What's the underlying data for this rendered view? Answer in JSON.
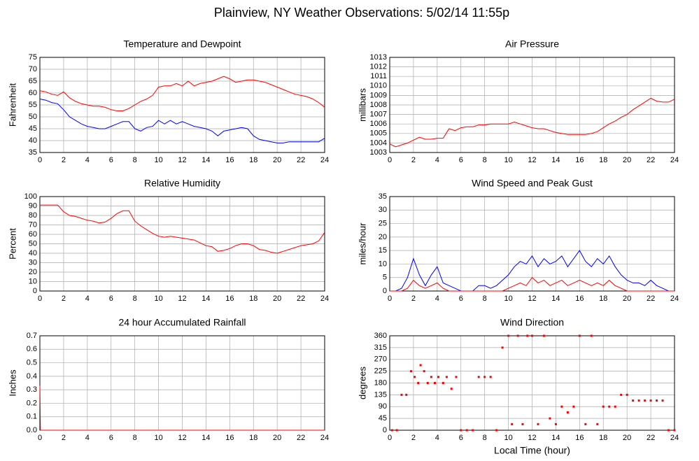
{
  "title": "Plainview, NY Weather Observations: 5/02/14 11:55p",
  "chart_data": [
    {
      "type": "line",
      "title": "Temperature and Dewpoint",
      "ylabel": "Fahrenheit",
      "xlim": [
        0,
        24
      ],
      "xticks": [
        0,
        2,
        4,
        6,
        8,
        10,
        12,
        14,
        16,
        18,
        20,
        22,
        24
      ],
      "ylim": [
        35,
        75
      ],
      "yticks": [
        35,
        40,
        45,
        50,
        55,
        60,
        65,
        70,
        75
      ],
      "grid": true,
      "x": [
        0,
        0.5,
        1,
        1.5,
        2,
        2.5,
        3,
        3.5,
        4,
        4.5,
        5,
        5.5,
        6,
        6.5,
        7,
        7.5,
        8,
        8.5,
        9,
        9.5,
        10,
        10.5,
        11,
        11.5,
        12,
        12.5,
        13,
        13.5,
        14,
        14.5,
        15,
        15.5,
        16,
        16.5,
        17,
        17.5,
        18,
        18.5,
        19,
        19.5,
        20,
        20.5,
        21,
        21.5,
        22,
        22.5,
        23,
        23.5,
        24
      ],
      "series": [
        {
          "color": "#ff0000",
          "values": [
            61,
            60.5,
            59.5,
            59,
            60.5,
            58,
            56.5,
            55.5,
            55,
            54.5,
            54.5,
            54,
            53,
            52.5,
            52.5,
            53.5,
            55,
            56.5,
            57.5,
            59,
            62.5,
            63,
            63,
            64,
            63,
            65,
            63,
            64,
            64.5,
            65,
            66,
            67,
            66,
            64.5,
            65,
            65.5,
            65.5,
            65,
            64.5,
            63.5,
            62.5,
            61.5,
            60.5,
            59.5,
            59,
            58.5,
            57.5,
            56,
            54
          ]
        },
        {
          "color": "#0000ff",
          "values": [
            57.5,
            57,
            56,
            55.5,
            53,
            50,
            48.5,
            47,
            46,
            45.5,
            45,
            45,
            46,
            47,
            48,
            48,
            45,
            44,
            45.5,
            46,
            48.5,
            47,
            48.5,
            47,
            48,
            47,
            46,
            45.5,
            45,
            44,
            42,
            44,
            44.5,
            45,
            45.5,
            45,
            42,
            40.5,
            40,
            39.5,
            39,
            39,
            39.5,
            39.5,
            39.5,
            39.5,
            39.5,
            39.5,
            41
          ]
        }
      ]
    },
    {
      "type": "line",
      "title": "Air Pressure",
      "ylabel": "millibars",
      "xlim": [
        0,
        24
      ],
      "xticks": [
        0,
        2,
        4,
        6,
        8,
        10,
        12,
        14,
        16,
        18,
        20,
        22,
        24
      ],
      "ylim": [
        1003,
        1013
      ],
      "yticks": [
        1003,
        1004,
        1005,
        1006,
        1007,
        1008,
        1009,
        1010,
        1011,
        1012,
        1013
      ],
      "grid": true,
      "x": [
        0,
        0.5,
        1,
        1.5,
        2,
        2.5,
        3,
        3.5,
        4,
        4.5,
        5,
        5.5,
        6,
        6.5,
        7,
        7.5,
        8,
        8.5,
        9,
        9.5,
        10,
        10.5,
        11,
        11.5,
        12,
        12.5,
        13,
        13.5,
        14,
        14.5,
        15,
        15.5,
        16,
        16.5,
        17,
        17.5,
        18,
        18.5,
        19,
        19.5,
        20,
        20.5,
        21,
        21.5,
        22,
        22.5,
        23,
        23.5,
        24
      ],
      "series": [
        {
          "color": "#ff0000",
          "values": [
            1003.9,
            1003.6,
            1003.8,
            1004,
            1004.3,
            1004.6,
            1004.4,
            1004.4,
            1004.5,
            1004.5,
            1005.5,
            1005.3,
            1005.6,
            1005.7,
            1005.7,
            1005.9,
            1005.9,
            1006,
            1006,
            1006,
            1006,
            1006.2,
            1006,
            1005.8,
            1005.6,
            1005.5,
            1005.5,
            1005.3,
            1005.1,
            1005,
            1004.9,
            1004.9,
            1004.9,
            1004.9,
            1005,
            1005.2,
            1005.6,
            1006,
            1006.3,
            1006.7,
            1007,
            1007.5,
            1007.9,
            1008.3,
            1008.7,
            1008.4,
            1008.3,
            1008.3,
            1008.6
          ]
        }
      ]
    },
    {
      "type": "line",
      "title": "Relative Humidity",
      "ylabel": "Percent",
      "xlim": [
        0,
        24
      ],
      "xticks": [
        0,
        2,
        4,
        6,
        8,
        10,
        12,
        14,
        16,
        18,
        20,
        22,
        24
      ],
      "ylim": [
        0,
        100
      ],
      "yticks": [
        0,
        10,
        20,
        30,
        40,
        50,
        60,
        70,
        80,
        90,
        100
      ],
      "grid": true,
      "x": [
        0,
        0.5,
        1,
        1.5,
        2,
        2.5,
        3,
        3.5,
        4,
        4.5,
        5,
        5.5,
        6,
        6.5,
        7,
        7.5,
        8,
        8.5,
        9,
        9.5,
        10,
        10.5,
        11,
        11.5,
        12,
        12.5,
        13,
        13.5,
        14,
        14.5,
        15,
        15.5,
        16,
        16.5,
        17,
        17.5,
        18,
        18.5,
        19,
        19.5,
        20,
        20.5,
        21,
        21.5,
        22,
        22.5,
        23,
        23.5,
        24
      ],
      "series": [
        {
          "color": "#ff0000",
          "values": [
            91,
            91,
            91,
            91,
            84,
            80,
            79,
            77,
            75,
            74,
            72,
            73,
            77,
            82,
            85,
            85,
            74,
            69,
            65,
            61,
            58,
            57,
            58,
            57,
            56,
            55,
            54,
            51,
            48,
            47,
            42,
            43,
            45,
            48,
            50,
            50,
            48,
            44,
            43,
            41,
            40,
            42,
            44,
            46,
            48,
            49,
            50,
            53,
            62
          ]
        }
      ]
    },
    {
      "type": "line",
      "title": "Wind Speed and Peak Gust",
      "ylabel": "miles/hour",
      "xlim": [
        0,
        24
      ],
      "xticks": [
        0,
        2,
        4,
        6,
        8,
        10,
        12,
        14,
        16,
        18,
        20,
        22,
        24
      ],
      "ylim": [
        0,
        35
      ],
      "yticks": [
        0,
        5,
        10,
        15,
        20,
        25,
        30,
        35
      ],
      "grid": true,
      "x": [
        0,
        0.5,
        1,
        1.5,
        2,
        2.5,
        3,
        3.5,
        4,
        4.5,
        5,
        5.5,
        6,
        6.5,
        7,
        7.5,
        8,
        8.5,
        9,
        9.5,
        10,
        10.5,
        11,
        11.5,
        12,
        12.5,
        13,
        13.5,
        14,
        14.5,
        15,
        15.5,
        16,
        16.5,
        17,
        17.5,
        18,
        18.5,
        19,
        19.5,
        20,
        20.5,
        21,
        21.5,
        22,
        22.5,
        23,
        23.5,
        24
      ],
      "series": [
        {
          "color": "#0000ff",
          "values": [
            0,
            0,
            1,
            5,
            12,
            6,
            2,
            6,
            9,
            3,
            2,
            1,
            0,
            0,
            0,
            2,
            2,
            1,
            2,
            4,
            6,
            9,
            11,
            10,
            13,
            9,
            12,
            10,
            11,
            13,
            9,
            12,
            15,
            11,
            9,
            12,
            10,
            13,
            9,
            6,
            4,
            3,
            3,
            2,
            4,
            2,
            1,
            0,
            0
          ]
        },
        {
          "color": "#ff0000",
          "values": [
            0,
            0,
            0,
            1,
            4,
            2,
            1,
            2,
            3,
            1,
            0,
            0,
            0,
            0,
            0,
            0,
            0,
            0,
            0,
            0,
            1,
            2,
            3,
            2,
            5,
            3,
            4,
            2,
            3,
            4,
            2,
            3,
            4,
            3,
            2,
            3,
            2,
            4,
            2,
            1,
            0,
            0,
            0,
            0,
            0,
            0,
            0,
            0,
            0
          ]
        }
      ]
    },
    {
      "type": "line",
      "title": "24 hour Accumulated Rainfall",
      "ylabel": "Inches",
      "xlim": [
        0,
        24
      ],
      "xticks": [
        0,
        2,
        4,
        6,
        8,
        10,
        12,
        14,
        16,
        18,
        20,
        22,
        24
      ],
      "ylim": [
        0,
        0.7
      ],
      "yticks": [
        {
          "value": 0,
          "label": "0.0"
        },
        0.1,
        0.2,
        0.3,
        0.4,
        0.5,
        0.6,
        0.7
      ],
      "grid": true,
      "x": [
        0,
        0.05,
        0.5,
        1,
        1.5,
        2,
        2.5,
        3,
        3.5,
        4,
        4.5,
        5,
        5.5,
        6,
        6.5,
        7,
        7.5,
        8,
        8.5,
        9,
        9.5,
        10,
        10.5,
        11,
        11.5,
        12,
        12.5,
        13,
        13.5,
        14,
        14.5,
        15,
        15.5,
        16,
        16.5,
        17,
        17.5,
        18,
        18.5,
        19,
        19.5,
        20,
        20.5,
        21,
        21.5,
        22,
        22.5,
        23,
        23.5,
        24
      ],
      "series": [
        {
          "color": "#ff0000",
          "values": [
            0.33,
            0,
            0,
            0,
            0,
            0,
            0,
            0,
            0,
            0,
            0,
            0,
            0,
            0,
            0,
            0,
            0,
            0,
            0,
            0,
            0,
            0,
            0,
            0,
            0,
            0,
            0,
            0,
            0,
            0,
            0,
            0,
            0,
            0,
            0,
            0,
            0,
            0,
            0,
            0,
            0,
            0,
            0,
            0,
            0,
            0,
            0,
            0,
            0,
            0
          ]
        }
      ]
    },
    {
      "type": "scatter",
      "title": "Wind Direction",
      "ylabel": "degrees",
      "xlabel": "Local Time (hour)",
      "xlim": [
        0,
        24
      ],
      "xticks": [
        0,
        2,
        4,
        6,
        8,
        10,
        12,
        14,
        16,
        18,
        20,
        22,
        24
      ],
      "ylim": [
        0,
        360
      ],
      "yticks": [
        0,
        45,
        90,
        135,
        180,
        225,
        270,
        315,
        360
      ],
      "grid": true,
      "x": [
        0.2,
        0.6,
        1,
        1.4,
        1.8,
        2.1,
        2.4,
        2.6,
        2.9,
        3.2,
        3.5,
        3.8,
        4.1,
        4.5,
        4.8,
        5.2,
        5.6,
        6,
        6.5,
        7,
        7.5,
        8,
        8.5,
        9,
        9.5,
        10,
        10.3,
        10.8,
        11.2,
        11.6,
        12,
        12.5,
        13,
        13.5,
        14,
        14.5,
        15,
        15.5,
        16,
        16.5,
        17,
        17.5,
        18,
        18.5,
        19,
        19.5,
        20,
        20.5,
        21,
        21.5,
        22,
        22.5,
        23,
        23.5,
        24
      ],
      "series": [
        {
          "color": "#ff0000",
          "values": [
            0,
            0,
            135,
            135,
            225,
            203,
            180,
            248,
            225,
            180,
            203,
            180,
            203,
            180,
            203,
            158,
            203,
            0,
            0,
            0,
            203,
            203,
            203,
            0,
            315,
            360,
            23,
            360,
            23,
            360,
            360,
            23,
            360,
            45,
            23,
            90,
            68,
            90,
            360,
            23,
            360,
            23,
            90,
            90,
            90,
            135,
            135,
            113,
            113,
            113,
            113,
            113,
            113,
            0,
            0
          ]
        }
      ]
    }
  ]
}
